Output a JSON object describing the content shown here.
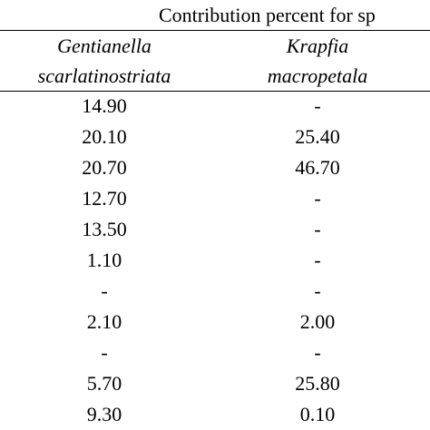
{
  "header": {
    "title": "Contribution percent for sp"
  },
  "table": {
    "columns": [
      {
        "line1": "Gentianella",
        "line2": "scarlatinostriata"
      },
      {
        "line1": "Krapfia",
        "line2": "macropetala"
      }
    ],
    "rows": [
      [
        "14.90",
        "-"
      ],
      [
        "20.10",
        "25.40"
      ],
      [
        "20.70",
        "46.70"
      ],
      [
        "12.70",
        "-"
      ],
      [
        "13.50",
        "-"
      ],
      [
        "1.10",
        "-"
      ],
      [
        "-",
        "-"
      ],
      [
        "2.10",
        "2.00"
      ],
      [
        "-",
        "-"
      ],
      [
        "5.70",
        "25.80"
      ],
      [
        "9.30",
        "0.10"
      ]
    ]
  }
}
